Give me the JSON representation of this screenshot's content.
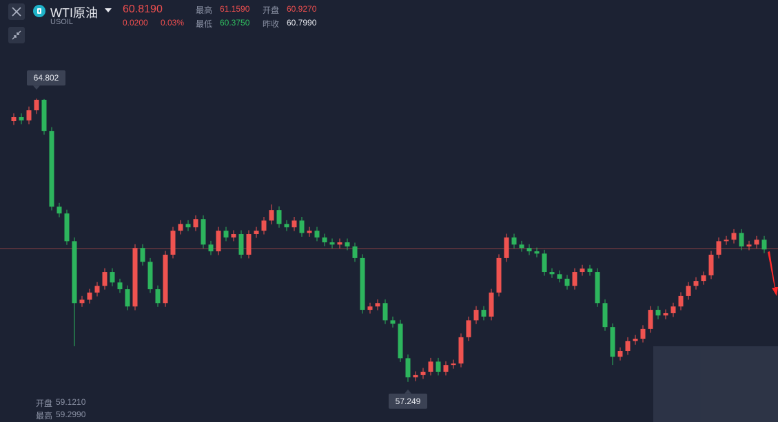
{
  "header": {
    "name": "WTI原油",
    "symbol": "USOIL",
    "price": "60.8190",
    "change": "0.0200",
    "change_pct": "0.03%",
    "stats": [
      {
        "label": "最高",
        "value": "61.1590"
      },
      {
        "label": "开盘",
        "value": "60.9270"
      },
      {
        "label": "最低",
        "value": "60.3750"
      },
      {
        "label": "昨收",
        "value": "60.7990"
      }
    ]
  },
  "crosshair_info": [
    {
      "label": "开盘",
      "value": "59.1210"
    },
    {
      "label": "最高",
      "value": "59.2990"
    }
  ],
  "chart_data": {
    "type": "candlestick",
    "up_color": "#ef5350",
    "down_color": "#2db55d",
    "ylim": [
      56.18,
      67.43
    ],
    "reference_line": 60.799,
    "max_label": 64.802,
    "min_label": 57.249,
    "open": [
      64.2,
      64.31,
      64.22,
      64.49,
      64.77,
      63.94,
      61.92,
      61.74,
      61.0,
      59.35,
      59.44,
      59.63,
      59.81,
      60.18,
      59.9,
      59.72,
      59.26,
      60.82,
      60.45,
      59.72,
      59.35,
      60.64,
      61.28,
      61.46,
      61.37,
      61.59,
      60.91,
      60.73,
      61.28,
      61.1,
      61.19,
      60.64,
      61.19,
      61.28,
      61.55,
      61.83,
      61.46,
      61.37,
      61.55,
      61.22,
      61.28,
      61.1,
      60.97,
      60.91,
      60.97,
      60.86,
      60.55,
      59.17,
      59.26,
      59.35,
      58.89,
      58.8,
      57.88,
      57.37,
      57.43,
      57.52,
      57.79,
      57.52,
      57.7,
      57.74,
      58.44,
      58.89,
      59.17,
      58.99,
      59.63,
      60.55,
      61.1,
      60.91,
      60.82,
      60.73,
      60.67,
      60.18,
      60.12,
      60.0,
      59.81,
      60.18,
      60.27,
      60.18,
      59.35,
      58.71,
      57.92,
      58.07,
      58.34,
      58.4,
      58.66,
      59.17,
      59.02,
      59.08,
      59.26,
      59.54,
      59.81,
      59.94,
      60.09,
      60.64,
      61.0,
      61.04,
      61.22,
      60.86,
      60.91,
      61.04
    ],
    "high": [
      64.41,
      64.41,
      64.59,
      64.8,
      64.79,
      64.04,
      62.02,
      61.84,
      61.1,
      59.54,
      59.73,
      59.91,
      60.28,
      60.28,
      60.0,
      59.82,
      60.92,
      60.92,
      60.55,
      59.82,
      60.74,
      61.38,
      61.56,
      61.56,
      61.69,
      61.69,
      61.01,
      61.38,
      61.38,
      61.29,
      61.29,
      61.29,
      61.38,
      61.65,
      61.98,
      61.93,
      61.56,
      61.65,
      61.65,
      61.38,
      61.38,
      61.2,
      61.07,
      61.07,
      61.07,
      60.96,
      60.65,
      59.36,
      59.45,
      59.45,
      58.99,
      58.9,
      57.98,
      57.53,
      57.62,
      57.89,
      57.89,
      57.8,
      57.84,
      58.54,
      58.99,
      59.27,
      59.27,
      59.73,
      60.65,
      61.2,
      61.2,
      61.01,
      60.92,
      60.83,
      60.77,
      60.28,
      60.22,
      60.1,
      60.28,
      60.37,
      60.37,
      60.28,
      59.45,
      58.81,
      58.17,
      58.44,
      58.5,
      58.76,
      59.27,
      59.27,
      59.18,
      59.36,
      59.64,
      59.91,
      60.04,
      60.19,
      60.74,
      61.1,
      61.14,
      61.32,
      61.32,
      61.01,
      61.14,
      61.14
    ],
    "low": [
      64.1,
      64.12,
      64.12,
      64.39,
      63.84,
      61.82,
      61.64,
      60.9,
      58.2,
      59.25,
      59.34,
      59.53,
      59.71,
      59.8,
      59.62,
      59.16,
      59.16,
      60.35,
      59.62,
      59.25,
      59.25,
      60.54,
      61.18,
      61.27,
      61.27,
      60.81,
      60.63,
      60.63,
      61.0,
      61.0,
      60.54,
      60.54,
      61.09,
      61.18,
      61.45,
      61.36,
      61.27,
      61.27,
      61.12,
      61.12,
      61.0,
      60.87,
      60.81,
      60.81,
      60.76,
      60.45,
      59.07,
      59.07,
      59.16,
      58.79,
      58.7,
      57.78,
      57.25,
      57.27,
      57.33,
      57.42,
      57.42,
      57.42,
      57.6,
      57.64,
      58.34,
      58.79,
      58.89,
      58.89,
      59.53,
      60.45,
      60.81,
      60.72,
      60.63,
      60.57,
      60.08,
      60.02,
      59.9,
      59.71,
      59.71,
      60.08,
      60.08,
      59.25,
      58.61,
      57.7,
      57.82,
      57.97,
      58.24,
      58.3,
      58.56,
      58.92,
      58.92,
      58.98,
      59.16,
      59.44,
      59.71,
      59.84,
      59.99,
      60.54,
      60.9,
      60.94,
      60.76,
      60.76,
      60.81,
      60.68
    ],
    "close": [
      64.31,
      64.22,
      64.49,
      64.77,
      63.94,
      61.92,
      61.74,
      61.0,
      59.35,
      59.44,
      59.63,
      59.81,
      60.18,
      59.9,
      59.72,
      59.26,
      60.82,
      60.45,
      59.72,
      59.35,
      60.64,
      61.28,
      61.46,
      61.37,
      61.59,
      60.91,
      60.73,
      61.28,
      61.1,
      61.19,
      60.64,
      61.19,
      61.28,
      61.55,
      61.83,
      61.46,
      61.37,
      61.55,
      61.22,
      61.28,
      61.1,
      60.97,
      60.91,
      60.97,
      60.86,
      60.55,
      59.17,
      59.26,
      59.35,
      58.89,
      58.8,
      57.88,
      57.37,
      57.43,
      57.52,
      57.79,
      57.52,
      57.7,
      57.74,
      58.44,
      58.89,
      59.17,
      58.99,
      59.63,
      60.55,
      61.1,
      60.91,
      60.82,
      60.73,
      60.67,
      60.18,
      60.12,
      60.0,
      59.81,
      60.18,
      60.27,
      60.18,
      59.35,
      58.71,
      57.92,
      58.07,
      58.34,
      58.4,
      58.66,
      59.17,
      59.02,
      59.08,
      59.26,
      59.54,
      59.81,
      59.94,
      60.09,
      60.64,
      61.0,
      61.04,
      61.22,
      60.86,
      60.91,
      61.04,
      60.78
    ]
  }
}
